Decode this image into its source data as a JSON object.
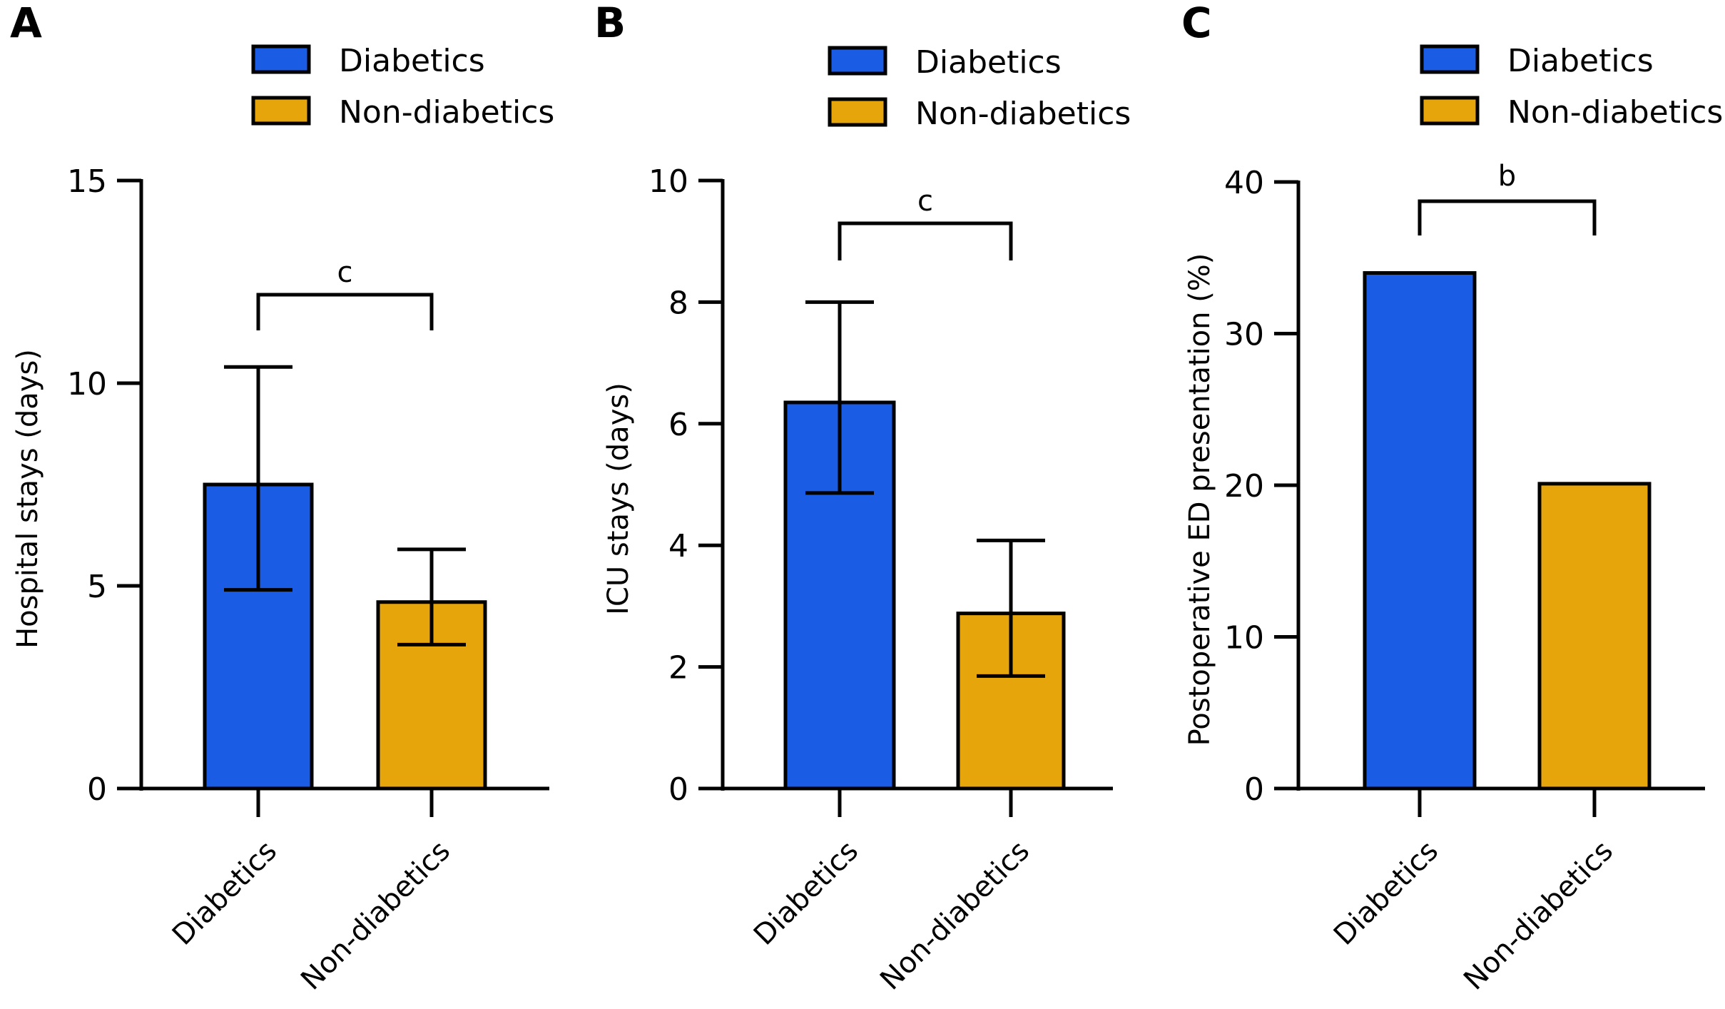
{
  "colors": {
    "diabetics": "#1a5ce3",
    "non_diabetics": "#e6a50a",
    "outline": "#000000"
  },
  "chart_data": [
    {
      "type": "bar",
      "panel": "A",
      "title": "",
      "xlabel": "",
      "ylabel": "Hospital stays (days)",
      "ylim": [
        0,
        15
      ],
      "yticks": [
        0,
        5,
        10,
        15
      ],
      "categories": [
        "Diabetics",
        "Non-diabetics"
      ],
      "values": [
        7.5,
        4.6
      ],
      "error_upper": [
        10.4,
        5.9
      ],
      "error_lower": [
        4.9,
        3.55
      ],
      "legend": [
        "Diabetics",
        "Non-diabetics"
      ],
      "legend_position": "top",
      "significance": "c"
    },
    {
      "type": "bar",
      "panel": "B",
      "title": "",
      "xlabel": "",
      "ylabel": "ICU stays (days)",
      "ylim": [
        0,
        10
      ],
      "yticks": [
        0,
        2,
        4,
        6,
        8,
        10
      ],
      "categories": [
        "Diabetics",
        "Non-diabetics"
      ],
      "values": [
        6.35,
        2.88
      ],
      "error_upper": [
        8.0,
        4.08
      ],
      "error_lower": [
        4.86,
        1.85
      ],
      "legend": [
        "Diabetics",
        "Non-diabetics"
      ],
      "legend_position": "top",
      "significance": "c"
    },
    {
      "type": "bar",
      "panel": "C",
      "title": "",
      "xlabel": "",
      "ylabel": "Postoperative ED presentation (%)",
      "ylim": [
        0,
        40
      ],
      "yticks": [
        0,
        10,
        20,
        30,
        40
      ],
      "categories": [
        "Diabetics",
        "Non-diabetics"
      ],
      "values": [
        34.0,
        20.1
      ],
      "error_upper": null,
      "error_lower": null,
      "legend": [
        "Diabetics",
        "Non-diabetics"
      ],
      "legend_position": "top",
      "significance": "b"
    }
  ]
}
